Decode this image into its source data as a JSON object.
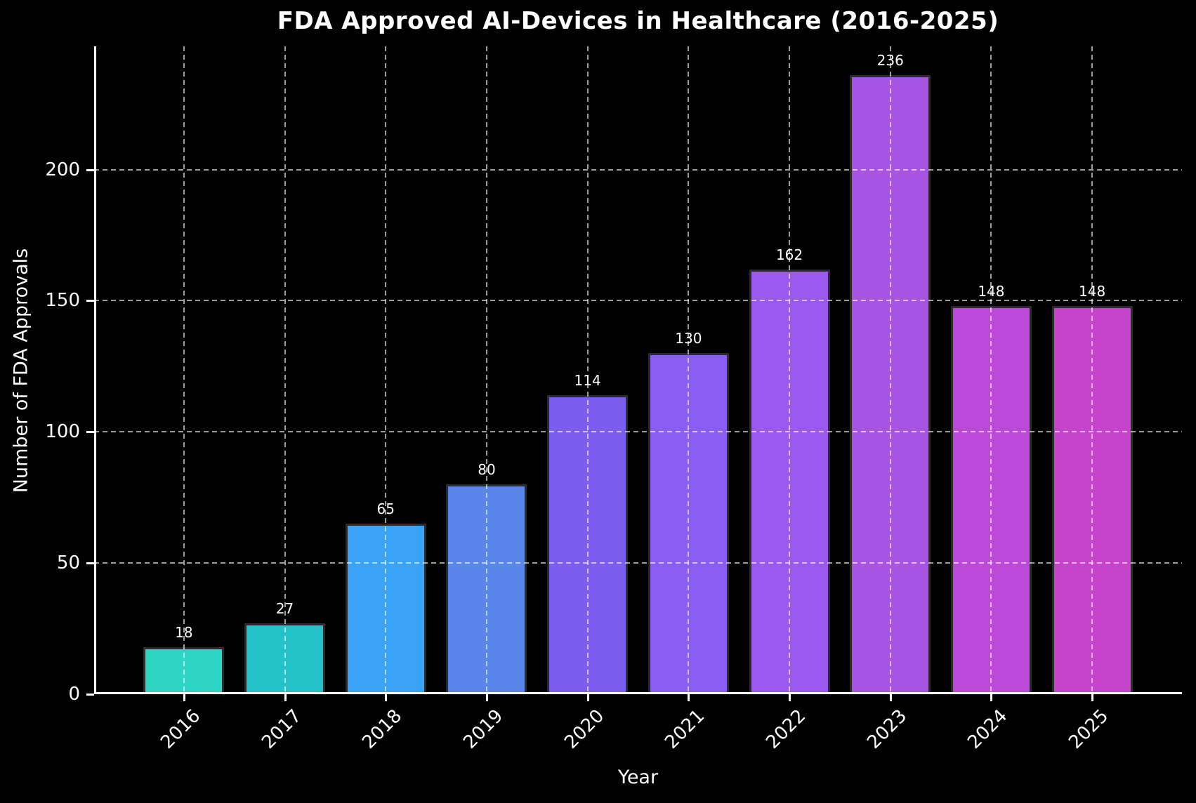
{
  "page": {
    "background": "#000000",
    "text_color": "#ffffff"
  },
  "chart_data": {
    "type": "bar",
    "title": "FDA Approved AI-Devices in Healthcare (2016-2025)",
    "xlabel": "Year",
    "ylabel": "Number of FDA Approvals",
    "categories": [
      "2016",
      "2017",
      "2018",
      "2019",
      "2020",
      "2021",
      "2022",
      "2023",
      "2024",
      "2025"
    ],
    "values": [
      18,
      27,
      65,
      80,
      114,
      130,
      162,
      236,
      148,
      148
    ],
    "value_labels": [
      "18",
      "27",
      "65",
      "80",
      "114",
      "130",
      "162",
      "236",
      "148",
      "148"
    ],
    "bar_colors": [
      "#2cd5c4",
      "#23c1c8",
      "#38a3f7",
      "#5a86e9",
      "#7b5def",
      "#8a5ef3",
      "#9c59f0",
      "#a854e2",
      "#ba4ad7",
      "#c643cc"
    ],
    "bar_edge_color": "#2b2b2b",
    "yticks": [
      0,
      50,
      100,
      150,
      200
    ],
    "ylim": [
      0,
      247
    ],
    "grid": {
      "style": "dashed",
      "horizontal": true,
      "vertical": true,
      "color": "rgba(255,255,255,0.62)",
      "drawn_over_bars": true
    },
    "legend": "none",
    "background": "#000000",
    "text_color": "#ffffff"
  }
}
